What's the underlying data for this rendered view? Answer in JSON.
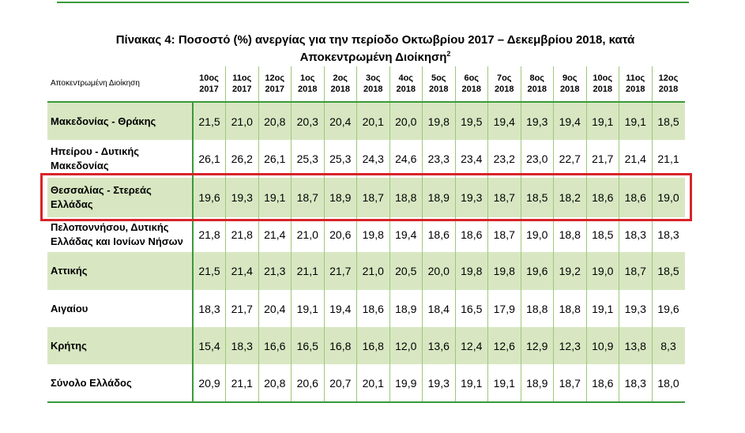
{
  "caption": {
    "title_line1": "Πίνακας 4: Ποσοστό (%) ανεργίας για την περίοδο Οκτωβρίου 2017 – Δεκεμβρίου 2018, κατά",
    "title_line2": "Αποκεντρωμένη Διοίκηση",
    "footnote_mark": "2"
  },
  "table": {
    "region_header": "Αποκεντρωμένη Διοίκηση",
    "columns": [
      {
        "month": "10ος",
        "year": "2017"
      },
      {
        "month": "11ος",
        "year": "2017"
      },
      {
        "month": "12ος",
        "year": "2017"
      },
      {
        "month": "1ος",
        "year": "2018"
      },
      {
        "month": "2ος",
        "year": "2018"
      },
      {
        "month": "3ος",
        "year": "2018"
      },
      {
        "month": "4ος",
        "year": "2018"
      },
      {
        "month": "5ος",
        "year": "2018"
      },
      {
        "month": "6ος",
        "year": "2018"
      },
      {
        "month": "7ος",
        "year": "2018"
      },
      {
        "month": "8ος",
        "year": "2018"
      },
      {
        "month": "9ος",
        "year": "2018"
      },
      {
        "month": "10ος",
        "year": "2018"
      },
      {
        "month": "11ος",
        "year": "2018"
      },
      {
        "month": "12ος",
        "year": "2018"
      }
    ],
    "rows": [
      {
        "region": "Μακεδονίας - Θράκης",
        "values": [
          "21,5",
          "21,0",
          "20,8",
          "20,3",
          "20,4",
          "20,1",
          "20,0",
          "19,8",
          "19,5",
          "19,4",
          "19,3",
          "19,4",
          "19,1",
          "19,1",
          "18,5"
        ]
      },
      {
        "region": "Ηπείρου - Δυτικής Μακεδονίας",
        "values": [
          "26,1",
          "26,2",
          "26,1",
          "25,3",
          "25,3",
          "24,3",
          "24,6",
          "23,3",
          "23,4",
          "23,2",
          "23,0",
          "22,7",
          "21,7",
          "21,4",
          "21,1"
        ]
      },
      {
        "region": "Θεσσαλίας - Στερεάς Ελλάδας",
        "values": [
          "19,6",
          "19,3",
          "19,1",
          "18,7",
          "18,9",
          "18,7",
          "18,8",
          "18,9",
          "19,3",
          "18,7",
          "18,5",
          "18,2",
          "18,6",
          "18,6",
          "19,0"
        ]
      },
      {
        "region": "Πελοποννήσου, Δυτικής Ελλάδας και Ιονίων Νήσων",
        "values": [
          "21,8",
          "21,8",
          "21,4",
          "21,0",
          "20,6",
          "19,8",
          "19,4",
          "18,6",
          "18,6",
          "18,7",
          "19,0",
          "18,8",
          "18,5",
          "18,3",
          "18,3"
        ]
      },
      {
        "region": "Αττικής",
        "values": [
          "21,5",
          "21,4",
          "21,3",
          "21,1",
          "21,7",
          "21,0",
          "20,5",
          "20,0",
          "19,8",
          "19,8",
          "19,6",
          "19,2",
          "19,0",
          "18,7",
          "18,5"
        ]
      },
      {
        "region": "Αιγαίου",
        "values": [
          "18,3",
          "21,7",
          "20,4",
          "19,1",
          "19,4",
          "18,6",
          "18,9",
          "18,4",
          "16,5",
          "17,9",
          "18,8",
          "18,8",
          "19,1",
          "19,3",
          "19,6"
        ]
      },
      {
        "region": "Κρήτης",
        "values": [
          "15,4",
          "18,3",
          "16,6",
          "16,5",
          "16,8",
          "16,8",
          "12,0",
          "13,6",
          "12,4",
          "12,6",
          "12,9",
          "12,3",
          "10,9",
          "13,8",
          "8,3"
        ]
      },
      {
        "region": "Σύνολο Ελλάδος",
        "values": [
          "20,9",
          "21,1",
          "20,8",
          "20,6",
          "20,7",
          "20,1",
          "19,9",
          "19,3",
          "19,1",
          "19,1",
          "18,9",
          "18,7",
          "18,6",
          "18,3",
          "18,0"
        ]
      }
    ],
    "highlighted_row": "Θεσσαλίας - Στερεάς Ελλάδας"
  },
  "colors": {
    "rule_green": "#3a9a3a",
    "row_shade": "#d8e7c2",
    "highlight_red": "#d8242a"
  }
}
